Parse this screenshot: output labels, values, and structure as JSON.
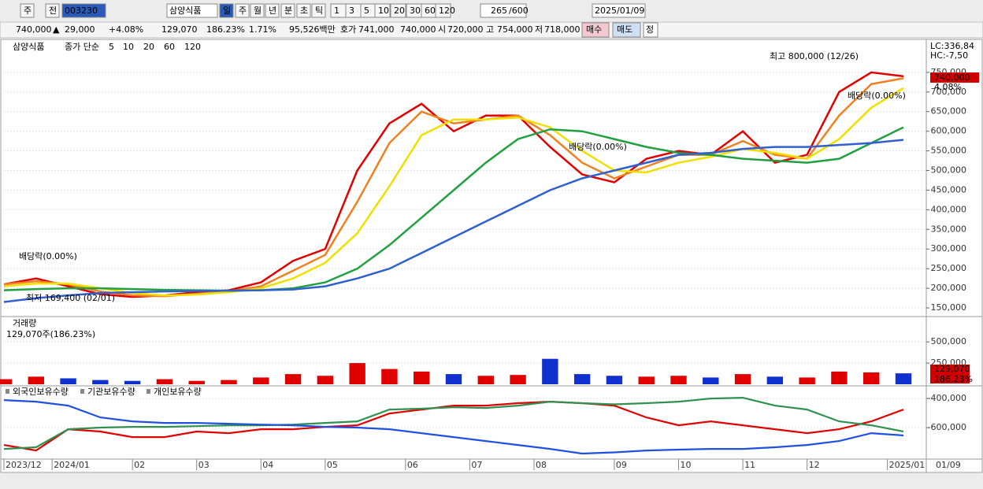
{
  "toolbar": {
    "items": [
      "주",
      "전",
      "003230",
      "삼양식품",
      "일",
      "주",
      "월",
      "년",
      "분",
      "초",
      "틱",
      "1",
      "3",
      "5",
      "10",
      "20",
      "30",
      "60",
      "120"
    ],
    "count": "265",
    "max": "/600",
    "date": "2025/01/09"
  },
  "quote": {
    "price": "740,000",
    "arrow": "▲",
    "change": "29,000",
    "rate": "+4.08%",
    "volume": "129,070",
    "volume_rate": "186.23%",
    "turnover": "1.71%",
    "amount": "95,526백만",
    "ask_label": "호가",
    "ask": "741,000",
    "bid": "740,000",
    "open_label": "시",
    "open": "720,000",
    "high_label": "고",
    "high": "754,000",
    "low_label": "저",
    "low": "718,000",
    "buy": "매수",
    "sell": "매도",
    "correct": "정"
  },
  "chart_data": [
    {
      "type": "line",
      "name": "삼양식품",
      "legend_label": "종가 단순",
      "xlim": [
        0,
        28
      ],
      "xticks": [
        {
          "value": 0,
          "label": "2023/12"
        },
        {
          "value": 1.5,
          "label": "2024/01"
        },
        {
          "value": 4,
          "label": "02"
        },
        {
          "value": 6,
          "label": "03"
        },
        {
          "value": 8,
          "label": "04"
        },
        {
          "value": 10,
          "label": "05"
        },
        {
          "value": 12.5,
          "label": "06"
        },
        {
          "value": 14.5,
          "label": "07"
        },
        {
          "value": 16.5,
          "label": "08"
        },
        {
          "value": 19,
          "label": "09"
        },
        {
          "value": 21,
          "label": "10"
        },
        {
          "value": 23,
          "label": "11"
        },
        {
          "value": 25,
          "label": "12"
        },
        {
          "value": 27.5,
          "label": "2025/01"
        }
      ],
      "last_date": "01/09",
      "ylim": [
        132000,
        824000
      ],
      "yticks": [
        {
          "value": 150000,
          "label": "150,000"
        },
        {
          "value": 200000,
          "label": "200,000"
        },
        {
          "value": 250000,
          "label": "250,000"
        },
        {
          "value": 300000,
          "label": "300,000"
        },
        {
          "value": 350000,
          "label": "350,000"
        },
        {
          "value": 400000,
          "label": "400,000"
        },
        {
          "value": 450000,
          "label": "450,000"
        },
        {
          "value": 500000,
          "label": "500,000"
        },
        {
          "value": 550000,
          "label": "550,000"
        },
        {
          "value": 600000,
          "label": "600,000"
        },
        {
          "value": 650000,
          "label": "650,000"
        },
        {
          "value": 700000,
          "label": "700,000"
        },
        {
          "value": 750000,
          "label": "750,000"
        }
      ],
      "series": [
        {
          "name": "5",
          "color": "#e00000",
          "values": [
            210000,
            225000,
            205000,
            185000,
            178000,
            182000,
            190000,
            195000,
            215000,
            270000,
            300000,
            500000,
            620000,
            670000,
            600000,
            640000,
            640000,
            560000,
            490000,
            470000,
            530000,
            550000,
            540000,
            600000,
            520000,
            540000,
            700000,
            750000,
            740000
          ]
        },
        {
          "name": "10",
          "color": "#f08020",
          "values": [
            210000,
            218000,
            210000,
            192000,
            182000,
            180000,
            186000,
            192000,
            205000,
            245000,
            285000,
            420000,
            570000,
            650000,
            620000,
            630000,
            640000,
            590000,
            520000,
            480000,
            510000,
            540000,
            540000,
            575000,
            540000,
            530000,
            640000,
            720000,
            735000
          ]
        },
        {
          "name": "20",
          "color": "#f0e000",
          "values": [
            205000,
            212000,
            212000,
            200000,
            188000,
            182000,
            184000,
            190000,
            200000,
            225000,
            265000,
            340000,
            460000,
            590000,
            630000,
            630000,
            635000,
            610000,
            550000,
            500000,
            495000,
            520000,
            535000,
            555000,
            545000,
            530000,
            580000,
            660000,
            710000
          ]
        },
        {
          "name": "60",
          "color": "#20a040",
          "values": [
            195000,
            198000,
            200000,
            200000,
            198000,
            196000,
            195000,
            194000,
            195000,
            200000,
            215000,
            250000,
            310000,
            380000,
            450000,
            520000,
            580000,
            605000,
            600000,
            580000,
            560000,
            545000,
            540000,
            530000,
            525000,
            520000,
            530000,
            570000,
            610000
          ]
        },
        {
          "name": "120",
          "color": "#3060d0",
          "values": [
            165000,
            175000,
            182000,
            188000,
            190000,
            192000,
            193000,
            194000,
            195000,
            197000,
            205000,
            225000,
            250000,
            290000,
            330000,
            370000,
            410000,
            450000,
            480000,
            500000,
            520000,
            540000,
            545000,
            555000,
            560000,
            560000,
            565000,
            570000,
            578000
          ]
        }
      ],
      "annotations": {
        "high": "최고 800,000 (12/26)",
        "low": "최저 169,400 (02/01)",
        "dividend1": "배당락(0.00%)",
        "dividend2": "배당락(0.00%)",
        "dividend3": "배당락(0.00%)",
        "lc": "LC:336,84",
        "hc": "HC:-7,50",
        "last_price": "740,000",
        "last_rate": "4.08%"
      }
    },
    {
      "type": "bar",
      "name": "거래량",
      "subtitle": "129,070주(186.23%)",
      "xlim": [
        0,
        28
      ],
      "ylim": [
        0,
        780000
      ],
      "yticks": [
        {
          "value": 250000,
          "label": "250,000"
        },
        {
          "value": 500000,
          "label": "500,000"
        }
      ],
      "color_up": "#e00000",
      "color_down": "#1030d0",
      "values": [
        60000,
        90000,
        70000,
        50000,
        40000,
        60000,
        40000,
        50000,
        80000,
        120000,
        100000,
        250000,
        180000,
        150000,
        120000,
        100000,
        110000,
        300000,
        120000,
        100000,
        90000,
        100000,
        80000,
        120000,
        90000,
        80000,
        150000,
        140000,
        129070
      ],
      "last_value": "129,070",
      "last_rate": "186.23%"
    },
    {
      "type": "line",
      "xlim": [
        0,
        28
      ],
      "ylim": [
        -816000,
        -324000
      ],
      "yticks": [
        {
          "value": -400000,
          "label": "-400,000"
        },
        {
          "value": -600000,
          "label": "-600,000"
        }
      ],
      "series": [
        {
          "name": "외국인보유수량",
          "color": "#e00000",
          "values": [
            -719000,
            -757000,
            -611000,
            -627000,
            -665000,
            -665000,
            -627000,
            -638000,
            -611000,
            -611000,
            -595000,
            -584000,
            -503000,
            -476000,
            -449000,
            -449000,
            -432000,
            -422000,
            -432000,
            -449000,
            -530000,
            -584000,
            -557000,
            -584000,
            -611000,
            -638000,
            -611000,
            -557000,
            -476000
          ]
        },
        {
          "name": "기관보유수량",
          "color": "#309050",
          "values": [
            -746000,
            -735000,
            -611000,
            -600000,
            -595000,
            -595000,
            -590000,
            -584000,
            -584000,
            -579000,
            -568000,
            -557000,
            -476000,
            -470000,
            -460000,
            -465000,
            -449000,
            -422000,
            -432000,
            -440000,
            -432000,
            -422000,
            -400000,
            -395000,
            -449000,
            -476000,
            -557000,
            -584000,
            -627000
          ]
        },
        {
          "name": "개인보유수량",
          "color": "#2050e0",
          "values": [
            -411000,
            -422000,
            -449000,
            -530000,
            -557000,
            -568000,
            -568000,
            -573000,
            -579000,
            -584000,
            -595000,
            -600000,
            -611000,
            -638000,
            -665000,
            -692000,
            -719000,
            -746000,
            -778000,
            -770000,
            -757000,
            -751000,
            -746000,
            -746000,
            -735000,
            -719000,
            -692000,
            -638000,
            -654000
          ]
        }
      ]
    }
  ]
}
